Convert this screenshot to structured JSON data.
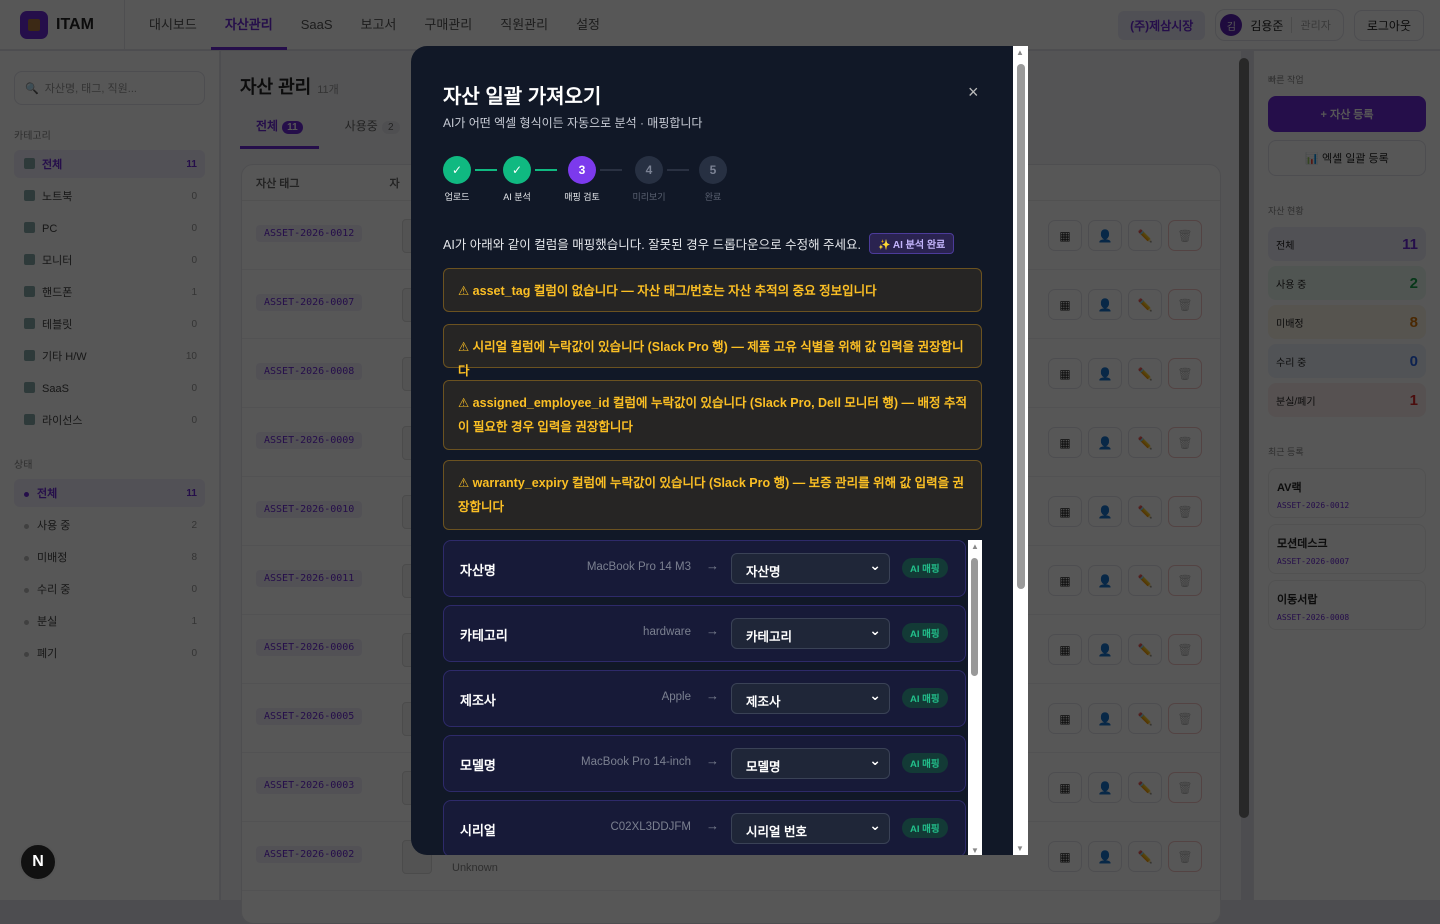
{
  "header": {
    "logo": "ITAM",
    "nav": [
      "대시보드",
      "자산관리",
      "SaaS",
      "보고서",
      "구매관리",
      "직원관리",
      "설정"
    ],
    "active_nav": 1,
    "company": "(주)제삼시장",
    "user_initial": "김",
    "user_name": "김용준",
    "user_role": "관리자",
    "logout": "로그아웃"
  },
  "sidebar": {
    "search_placeholder": "자산명, 태그, 직원...",
    "category_title": "카테고리",
    "categories": [
      {
        "label": "전체",
        "count": "11"
      },
      {
        "label": "노트북",
        "count": "0"
      },
      {
        "label": "PC",
        "count": "0"
      },
      {
        "label": "모니터",
        "count": "0"
      },
      {
        "label": "핸드폰",
        "count": "1"
      },
      {
        "label": "테블릿",
        "count": "0"
      },
      {
        "label": "기타 H/W",
        "count": "10"
      },
      {
        "label": "SaaS",
        "count": "0"
      },
      {
        "label": "라이선스",
        "count": "0"
      }
    ],
    "status_title": "상태",
    "statuses": [
      {
        "label": "전체",
        "count": "11"
      },
      {
        "label": "사용 중",
        "count": "2"
      },
      {
        "label": "미배정",
        "count": "8"
      },
      {
        "label": "수리 중",
        "count": "0"
      },
      {
        "label": "분실",
        "count": "1"
      },
      {
        "label": "폐기",
        "count": "0"
      }
    ]
  },
  "main": {
    "title": "자산 관리",
    "count": "11개",
    "tabs": [
      {
        "label": "전체",
        "count": "11"
      },
      {
        "label": "사용중",
        "count": "2"
      }
    ],
    "columns": [
      "자산 태그",
      "자"
    ],
    "rows": [
      "ASSET-2026-0012",
      "ASSET-2026-0007",
      "ASSET-2026-0008",
      "ASSET-2026-0009",
      "ASSET-2026-0010",
      "ASSET-2026-0011",
      "ASSET-2026-0006",
      "ASSET-2026-0005",
      "ASSET-2026-0003",
      "ASSET-2026-0002"
    ],
    "last_row_manufacturer": "Unknown"
  },
  "right": {
    "quick_title": "빠른 작업",
    "add_asset": "+ 자산 등록",
    "excel_upload": "엑셀 일괄 등록",
    "status_title": "자산 현황",
    "stats": [
      {
        "label": "전체",
        "value": "11",
        "color": "#6d28d9"
      },
      {
        "label": "사용 중",
        "value": "2",
        "color": "#16a34a"
      },
      {
        "label": "미배정",
        "value": "8",
        "color": "#d97706"
      },
      {
        "label": "수리 중",
        "value": "0",
        "color": "#2563eb"
      },
      {
        "label": "분실/폐기",
        "value": "1",
        "color": "#dc2626"
      }
    ],
    "recent_title": "최근 등록",
    "recent": [
      {
        "name": "AV랙",
        "tag": "ASSET-2026-0012"
      },
      {
        "name": "모션데스크",
        "tag": "ASSET-2026-0007"
      },
      {
        "name": "이동서랍",
        "tag": "ASSET-2026-0008"
      }
    ]
  },
  "modal": {
    "title": "자산 일괄 가져오기",
    "subtitle": "AI가 어떤 엑셀 형식이든 자동으로 분석 · 매핑합니다",
    "close": "×",
    "steps": [
      {
        "num": "✓",
        "label": "업로드",
        "state": "done"
      },
      {
        "num": "✓",
        "label": "AI 분석",
        "state": "done"
      },
      {
        "num": "3",
        "label": "매핑 검토",
        "state": "active"
      },
      {
        "num": "4",
        "label": "미리보기",
        "state": "todo"
      },
      {
        "num": "5",
        "label": "완료",
        "state": "todo"
      }
    ],
    "info": "AI가 아래와 같이 컬럼을 매핑했습니다. 잘못된 경우 드롭다운으로 수정해 주세요.",
    "ai_badge": "✨ AI 분석 완료",
    "warnings": [
      "⚠ asset_tag 컬럼이 없습니다 — 자산 태그/번호는 자산 추적의 중요 정보입니다",
      "⚠ 시리얼 컬럼에 누락값이 있습니다 (Slack Pro 행) — 제품 고유 식별을 위해 값 입력을 권장합니다",
      "⚠ assigned_employee_id 컬럼에 누락값이 있습니다 (Slack Pro, Dell 모니터 행) — 배정 추적이 필요한 경우 입력을 권장합니다",
      "⚠ warranty_expiry 컬럼에 누락값이 있습니다 (Slack Pro 행) — 보증 관리를 위해 값 입력을 권장합니다"
    ],
    "mappings": [
      {
        "column": "자산명",
        "sample": "MacBook Pro 14 M3",
        "field": "자산명",
        "badge": "AI 매핑"
      },
      {
        "column": "카테고리",
        "sample": "hardware",
        "field": "카테고리",
        "badge": "AI 매핑"
      },
      {
        "column": "제조사",
        "sample": "Apple",
        "field": "제조사",
        "badge": "AI 매핑"
      },
      {
        "column": "모델명",
        "sample": "MacBook Pro 14-inch",
        "field": "모델명",
        "badge": "AI 매핑"
      },
      {
        "column": "시리얼",
        "sample": "C02XL3DDJFM",
        "field": "시리얼 번호",
        "badge": "AI 매핑"
      }
    ]
  },
  "devtools": "N"
}
